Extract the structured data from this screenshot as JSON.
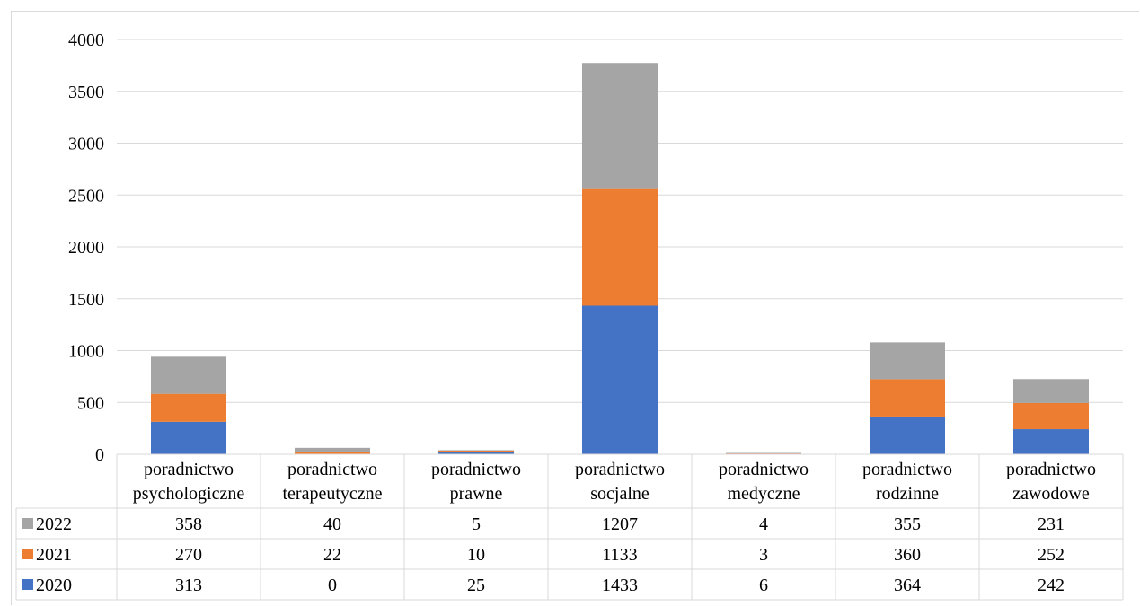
{
  "chart_data": {
    "type": "bar",
    "stacked": true,
    "categories": [
      [
        "poradnictwo",
        "psychologiczne"
      ],
      [
        "poradnictwo",
        "terapeutyczne"
      ],
      [
        "poradnictwo",
        "prawne"
      ],
      [
        "poradnictwo",
        "socjalne"
      ],
      [
        "poradnictwo",
        "medyczne"
      ],
      [
        "poradnictwo",
        "rodzinne"
      ],
      [
        "poradnictwo",
        "zawodowe"
      ]
    ],
    "series": [
      {
        "name": "2020",
        "color": "#4472C4",
        "values": [
          313,
          0,
          25,
          1433,
          6,
          364,
          242
        ]
      },
      {
        "name": "2021",
        "color": "#ED7D31",
        "values": [
          270,
          22,
          10,
          1133,
          3,
          360,
          252
        ]
      },
      {
        "name": "2022",
        "color": "#A5A5A5",
        "values": [
          358,
          40,
          5,
          1207,
          4,
          355,
          231
        ]
      }
    ],
    "table_row_order": [
      "2022",
      "2021",
      "2020"
    ],
    "yticks": [
      0,
      500,
      1000,
      1500,
      2000,
      2500,
      3000,
      3500,
      4000
    ],
    "ylim": [
      0,
      4000
    ],
    "grid": true,
    "legend": "data-table",
    "title": "",
    "xlabel": "",
    "ylabel": ""
  }
}
